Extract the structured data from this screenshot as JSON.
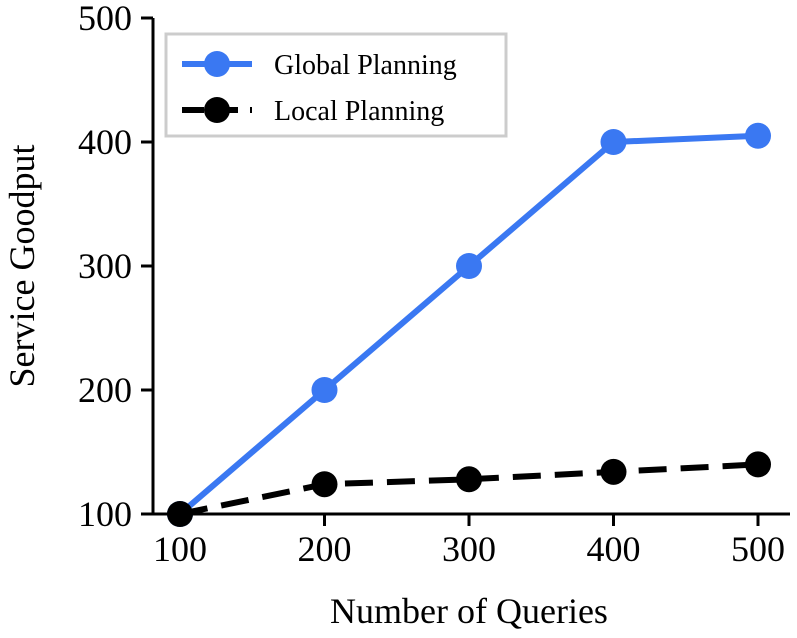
{
  "chart_data": {
    "type": "line",
    "title": "",
    "xlabel": "Number of Queries",
    "ylabel": "Service Goodput",
    "x": [
      100,
      200,
      300,
      400,
      500
    ],
    "x_ticks": [
      "100",
      "200",
      "300",
      "400",
      "500"
    ],
    "y_ticks": [
      "100",
      "200",
      "300",
      "400",
      "500"
    ],
    "xlim": [
      100,
      500
    ],
    "ylim": [
      100,
      500
    ],
    "grid": false,
    "legend_position": "top-left",
    "series": [
      {
        "name": "Global Planning",
        "values": [
          100,
          200,
          300,
          400,
          405
        ],
        "color": "#3a78f2",
        "line_style": "solid",
        "marker": "circle"
      },
      {
        "name": "Local Planning",
        "values": [
          100,
          124,
          128,
          134,
          140
        ],
        "color": "#000000",
        "line_style": "dashed",
        "marker": "circle"
      }
    ]
  }
}
